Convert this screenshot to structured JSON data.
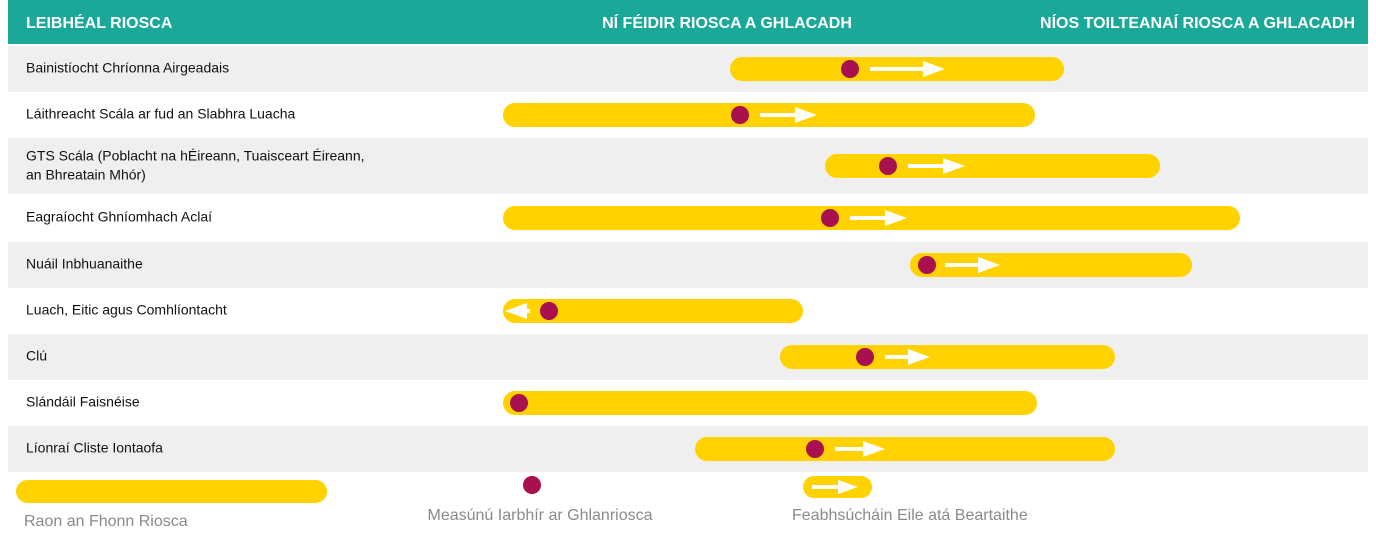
{
  "header": {
    "col1": "LEIBHÉAL RIOSCA",
    "col2": "NÍ FÉIDIR RIOSCA A GHLACADH",
    "col3": "NÍOS TOILTEANAÍ RIOSCA A GHLACADH"
  },
  "rows": [
    {
      "label": "Bainistíocht Chríonna Airgeadais"
    },
    {
      "label": "Láithreacht Scála ar fud an Slabhra Luacha"
    },
    {
      "label": "GTS Scála (Poblacht na hÉireann, Tuaisceart Éireann,",
      "label2": "an Bhreatain Mhór)"
    },
    {
      "label": "Eagraíocht Ghníomhach Aclaí"
    },
    {
      "label": "Nuáil Inbhuanaithe"
    },
    {
      "label": "Luach, Eitic agus Comhlíontacht"
    },
    {
      "label": "Clú"
    },
    {
      "label": "Slándáil Faisnéise"
    },
    {
      "label": "Líonraí Cliste Iontaofa"
    }
  ],
  "legend": {
    "range": "Raon an Fhonn Riosca",
    "assessment": "Measúnú Iarbhír ar Ghlanriosca",
    "improvements": "Feabhsúcháin Eile atá Beartaithe"
  }
}
